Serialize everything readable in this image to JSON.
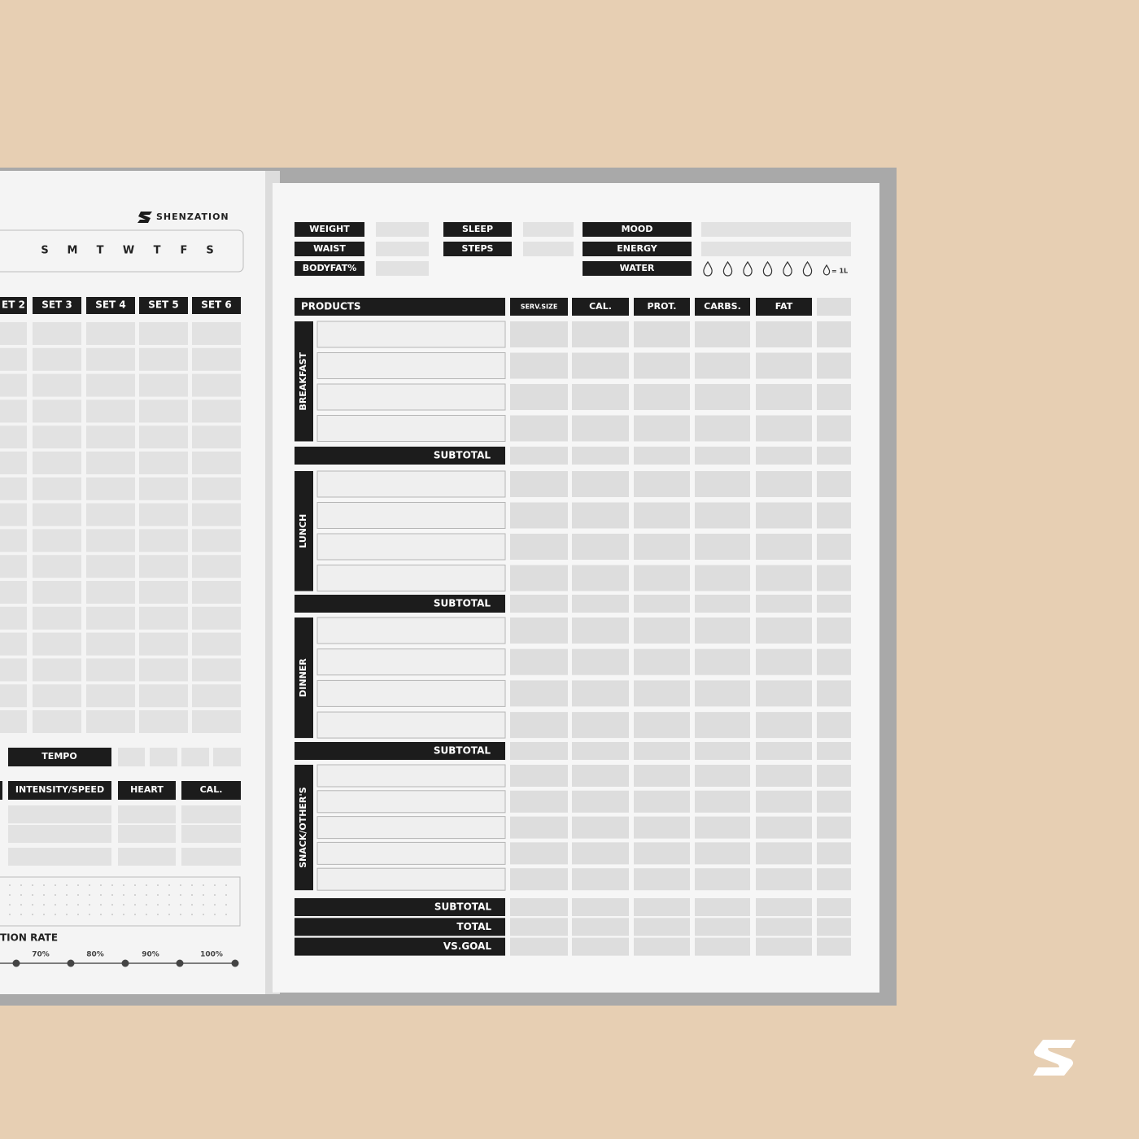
{
  "brand": "SHENZATION",
  "days": [
    "S",
    "M",
    "T",
    "W",
    "T",
    "F",
    "S"
  ],
  "sets": [
    "ET 2",
    "SET 3",
    "SET 4",
    "SET 5",
    "SET 6"
  ],
  "tempo": "TEMPO",
  "cardio_headers": [
    "INTENSITY/SPEED",
    "HEART",
    "CAL."
  ],
  "rate_title": "TION RATE",
  "rate_ticks": [
    "70%",
    "80%",
    "90%",
    "100%"
  ],
  "metrics": [
    [
      "WEIGHT",
      "WAIST",
      "BODYFAT%"
    ],
    [
      "SLEEP",
      "STEPS"
    ],
    [
      "MOOD",
      "ENERGY",
      "WATER"
    ]
  ],
  "water_legend": "= 1L",
  "columns": [
    "PRODUCTS",
    "SERV.SIZE",
    "CAL.",
    "PROT.",
    "CARBS.",
    "FAT"
  ],
  "meals": [
    {
      "name": "BREAKFAST",
      "subtotal": "SUBTOTAL"
    },
    {
      "name": "LUNCH",
      "subtotal": "SUBTOTAL"
    },
    {
      "name": "DINNER",
      "subtotal": "SUBTOTAL"
    },
    {
      "name": "SNACK/OTHER'S"
    }
  ],
  "totals": [
    "SUBTOTAL",
    "TOTAL",
    "VS.GOAL"
  ]
}
